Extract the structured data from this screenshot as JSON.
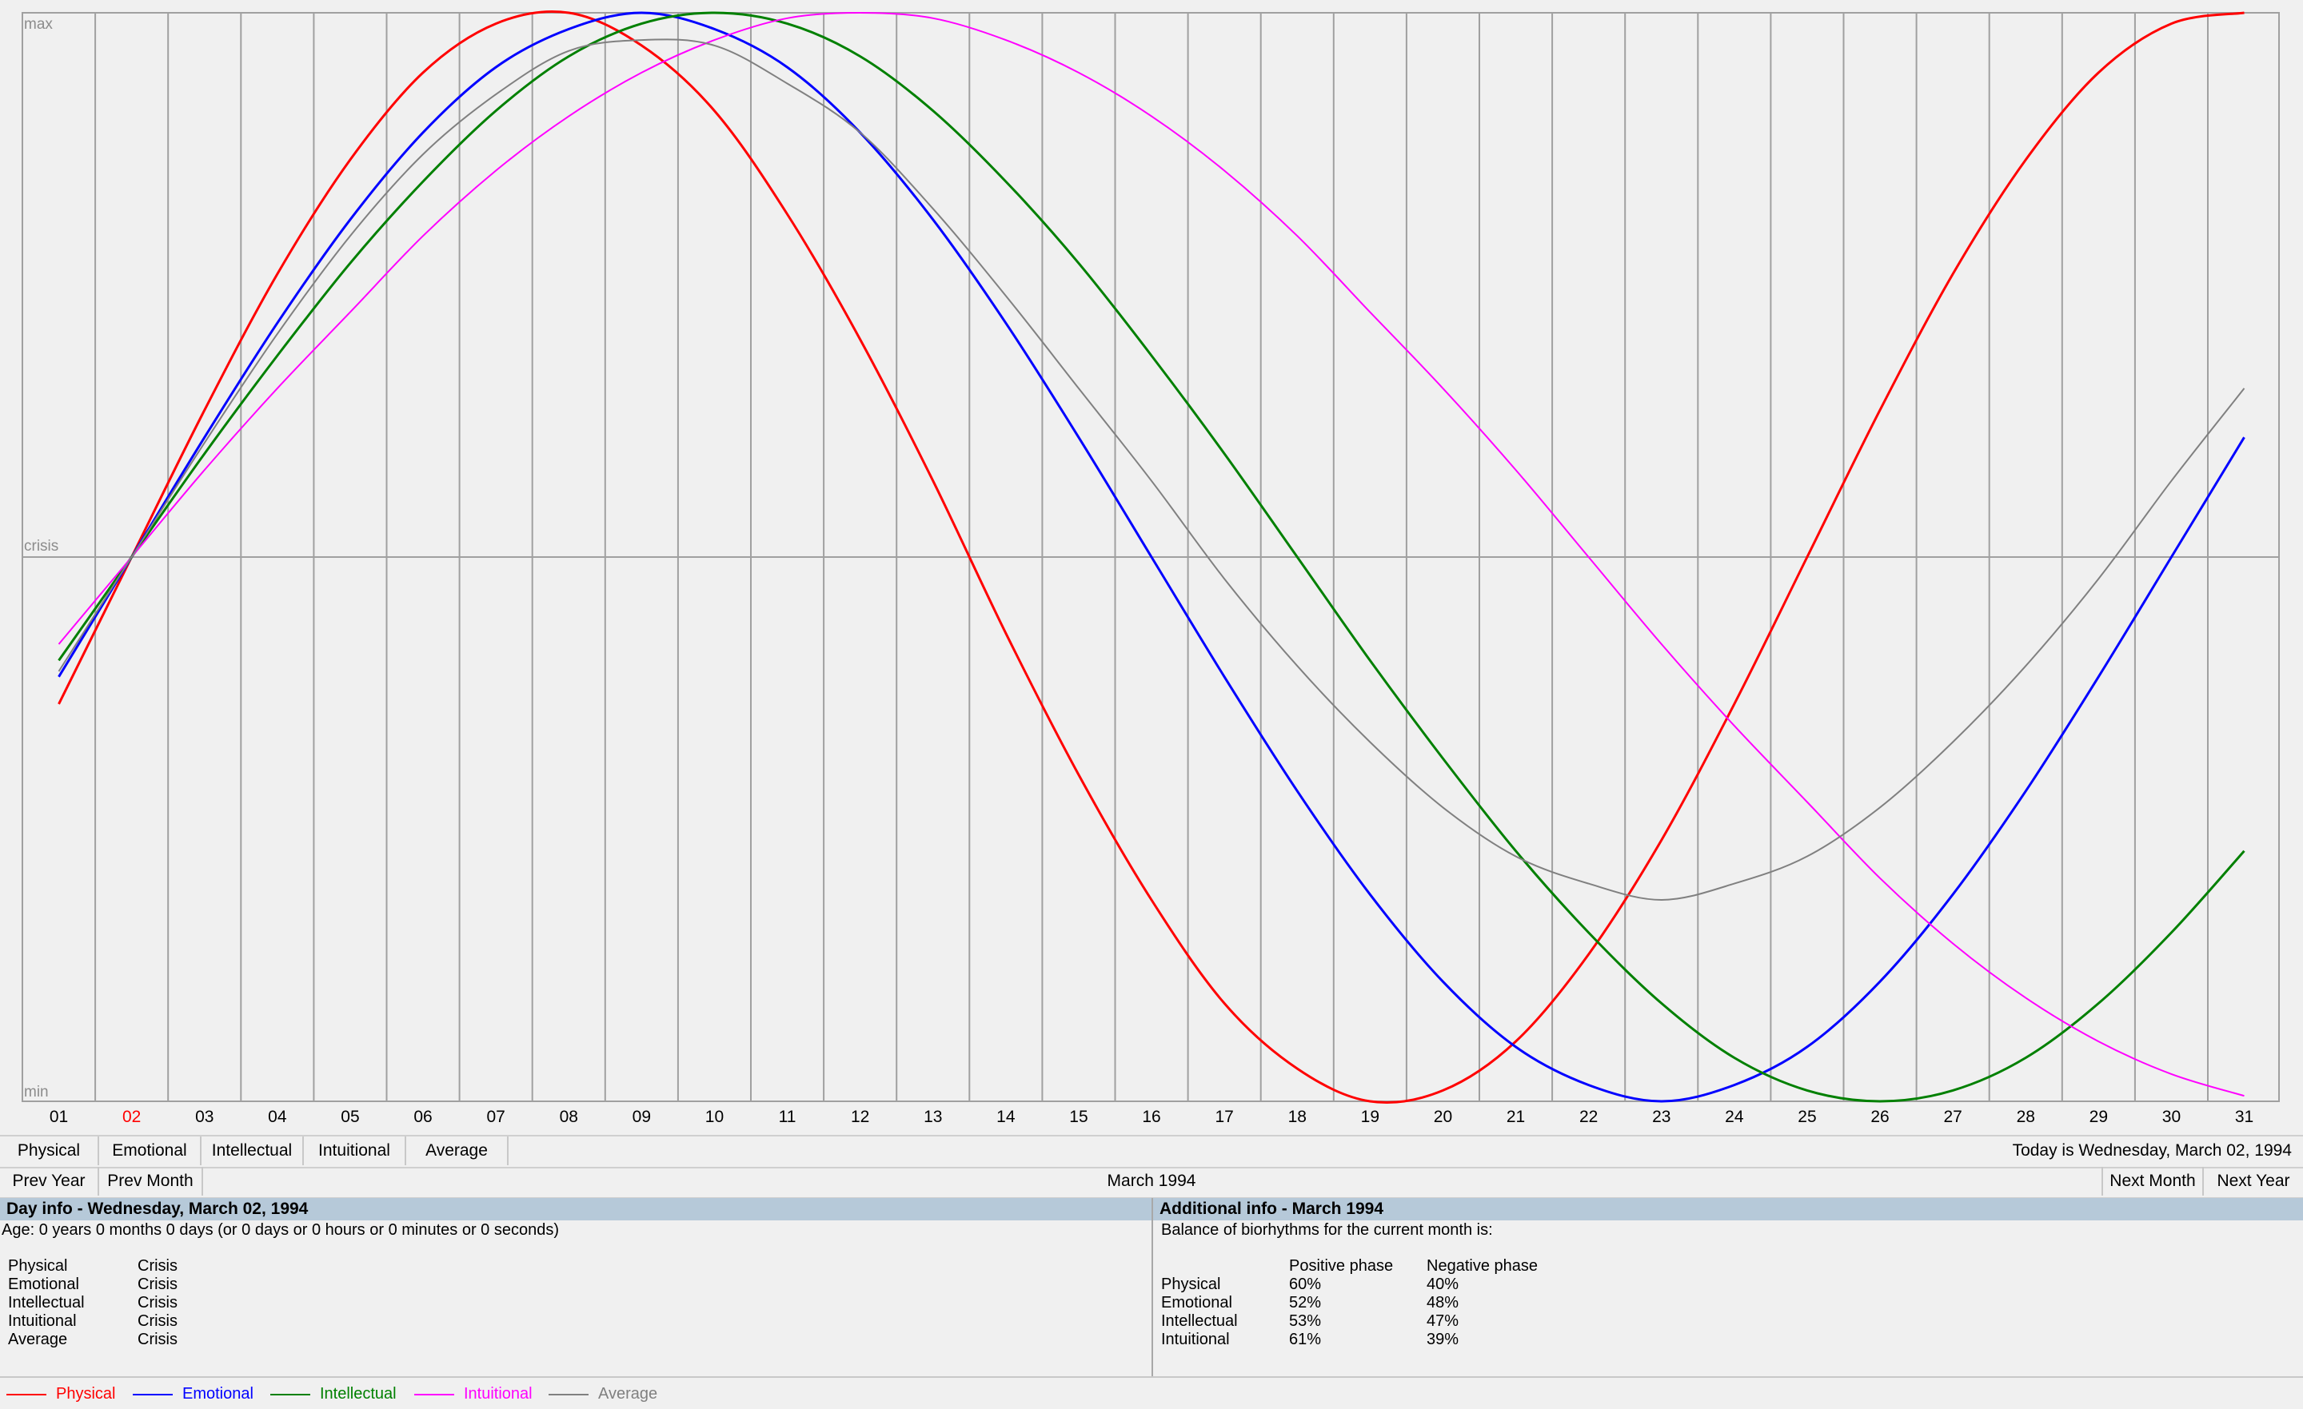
{
  "chart": {
    "y_labels": {
      "max": "max",
      "crisis": "crisis",
      "min": "min"
    },
    "days": [
      "01",
      "02",
      "03",
      "04",
      "05",
      "06",
      "07",
      "08",
      "09",
      "10",
      "11",
      "12",
      "13",
      "14",
      "15",
      "16",
      "17",
      "18",
      "19",
      "20",
      "21",
      "22",
      "23",
      "24",
      "25",
      "26",
      "27",
      "28",
      "29",
      "30",
      "31"
    ],
    "selected_day": "02",
    "selected_color": "#ff0000",
    "grid_color": "#a0a0a0"
  },
  "chart_data": {
    "type": "line",
    "x": [
      1,
      2,
      3,
      4,
      5,
      6,
      7,
      8,
      9,
      10,
      11,
      12,
      13,
      14,
      15,
      16,
      17,
      18,
      19,
      20,
      21,
      22,
      23,
      24,
      25,
      26,
      27,
      28,
      29,
      30,
      31
    ],
    "ylim": [
      -1,
      1
    ],
    "series": [
      {
        "name": "Physical",
        "color": "#ff0000",
        "values": [
          -0.27,
          0.0,
          0.27,
          0.52,
          0.73,
          0.89,
          0.98,
          1.0,
          0.94,
          0.82,
          0.63,
          0.4,
          0.14,
          -0.14,
          -0.4,
          -0.63,
          -0.82,
          -0.94,
          -1.0,
          -0.98,
          -0.89,
          -0.73,
          -0.52,
          -0.27,
          0.0,
          0.27,
          0.52,
          0.73,
          0.89,
          0.98,
          1.0
        ]
      },
      {
        "name": "Emotional",
        "color": "#0000ff",
        "values": [
          -0.22,
          0.0,
          0.22,
          0.43,
          0.62,
          0.78,
          0.9,
          0.97,
          1.0,
          0.97,
          0.9,
          0.78,
          0.62,
          0.43,
          0.22,
          0.0,
          -0.22,
          -0.43,
          -0.62,
          -0.78,
          -0.9,
          -0.97,
          -1.0,
          -0.97,
          -0.9,
          -0.78,
          -0.62,
          -0.43,
          -0.22,
          0.0,
          0.22
        ]
      },
      {
        "name": "Intellectual",
        "color": "#008000",
        "values": [
          -0.19,
          0.0,
          0.19,
          0.37,
          0.54,
          0.69,
          0.82,
          0.92,
          0.98,
          1.0,
          0.98,
          0.92,
          0.82,
          0.69,
          0.54,
          0.37,
          0.19,
          0.0,
          -0.19,
          -0.37,
          -0.54,
          -0.69,
          -0.82,
          -0.92,
          -0.98,
          -1.0,
          -0.98,
          -0.92,
          -0.82,
          -0.69,
          -0.54
        ]
      },
      {
        "name": "Intuitional",
        "color": "#ff00ff",
        "values": [
          -0.16,
          0.0,
          0.16,
          0.31,
          0.45,
          0.59,
          0.71,
          0.81,
          0.89,
          0.95,
          0.99,
          1.0,
          0.99,
          0.95,
          0.89,
          0.81,
          0.71,
          0.59,
          0.45,
          0.31,
          0.16,
          0.0,
          -0.16,
          -0.31,
          -0.45,
          -0.59,
          -0.71,
          -0.81,
          -0.89,
          -0.95,
          -0.99
        ]
      },
      {
        "name": "Average",
        "color": "#808080",
        "values": [
          -0.21,
          0.0,
          0.21,
          0.41,
          0.59,
          0.74,
          0.85,
          0.93,
          0.95,
          0.94,
          0.87,
          0.78,
          0.64,
          0.48,
          0.31,
          0.14,
          -0.04,
          -0.2,
          -0.34,
          -0.46,
          -0.55,
          -0.6,
          -0.63,
          -0.6,
          -0.55,
          -0.46,
          -0.34,
          -0.2,
          -0.04,
          0.14,
          0.31
        ]
      }
    ]
  },
  "series_buttons": [
    "Physical",
    "Emotional",
    "Intellectual",
    "Intuitional",
    "Average"
  ],
  "today_text": "Today is Wednesday, March 02, 1994",
  "nav": {
    "prev_year": "Prev Year",
    "prev_month": "Prev Month",
    "month": "March 1994",
    "next_month": "Next Month",
    "next_year": "Next Year"
  },
  "day_info": {
    "header": "Day info - Wednesday, March 02, 1994",
    "age": "Age: 0 years 0 months 0 days (or 0 days or 0 hours or 0 minutes or 0 seconds)",
    "rows": [
      {
        "name": "Physical",
        "state": "Crisis"
      },
      {
        "name": "Emotional",
        "state": "Crisis"
      },
      {
        "name": "Intellectual",
        "state": "Crisis"
      },
      {
        "name": "Intuitional",
        "state": "Crisis"
      },
      {
        "name": "Average",
        "state": "Crisis"
      }
    ]
  },
  "additional_info": {
    "header": "Additional info - March 1994",
    "balance": "Balance of biorhythms for the current month is:",
    "col_positive": "Positive phase",
    "col_negative": "Negative phase",
    "rows": [
      {
        "name": "Physical",
        "pos": "60%",
        "neg": "40%"
      },
      {
        "name": "Emotional",
        "pos": "52%",
        "neg": "48%"
      },
      {
        "name": "Intellectual",
        "pos": "53%",
        "neg": "47%"
      },
      {
        "name": "Intuitional",
        "pos": "61%",
        "neg": "39%"
      }
    ]
  },
  "legend": [
    {
      "name": "Physical",
      "color": "#ff0000"
    },
    {
      "name": "Emotional",
      "color": "#0000ff"
    },
    {
      "name": "Intellectual",
      "color": "#008000"
    },
    {
      "name": "Intuitional",
      "color": "#ff00ff"
    },
    {
      "name": "Average",
      "color": "#808080"
    }
  ]
}
